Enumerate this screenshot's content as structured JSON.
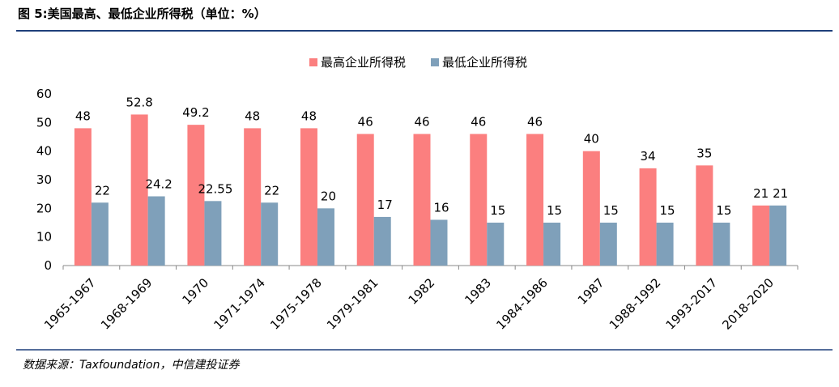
{
  "chart_data": {
    "type": "bar",
    "title": "图 5:美国最高、最低企业所得税（单位：%）",
    "source": "数据来源：Taxfoundation，中信建投证券",
    "categories": [
      "1965-1967",
      "1968-1969",
      "1970",
      "1971-1974",
      "1975-1978",
      "1979-1981",
      "1982",
      "1983",
      "1984-1986",
      "1987",
      "1988-1992",
      "1993-2017",
      "2018-2020"
    ],
    "series": [
      {
        "name": "最高企业所得税",
        "color": "#fb7f7f",
        "values": [
          48,
          52.8,
          49.2,
          48,
          48,
          46,
          46,
          46,
          46,
          40,
          34,
          35,
          21
        ]
      },
      {
        "name": "最低企业所得税",
        "color": "#7fa0ba",
        "values": [
          22,
          24.2,
          22.55,
          22,
          20,
          17,
          16,
          15,
          15,
          15,
          15,
          15,
          21
        ]
      }
    ],
    "ylim": [
      0,
      60
    ],
    "yticks": [
      0,
      10,
      20,
      30,
      40,
      50,
      60
    ],
    "grid": false,
    "legend": "top"
  }
}
